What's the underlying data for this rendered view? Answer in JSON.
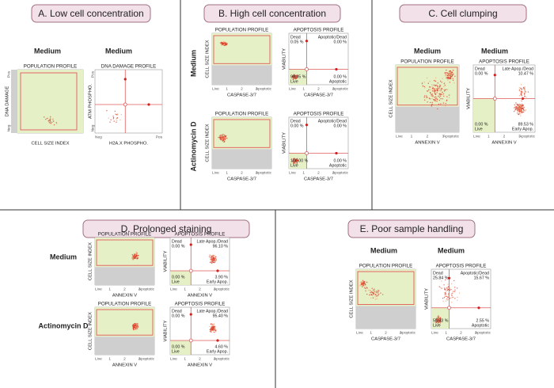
{
  "panels": [
    {
      "title": "A. Low cell concentration",
      "labels": [
        "Medium",
        "Medium"
      ],
      "plots": [
        {
          "title": "POPULATION PROFILE",
          "x_label": "CELL SIZE INDEX",
          "y_label": "DNA DAMAGE",
          "y_ends": [
            "Neg",
            "Pos"
          ]
        },
        {
          "title": "DNA DAMAGE PROFILE",
          "x_label": "H2A.X PHOSPHO.",
          "y_label": "ATM PHOSPHO.",
          "x_ends": [
            "Neg",
            "Pos"
          ],
          "y_ends": [
            "Neg",
            "Pos"
          ]
        }
      ]
    },
    {
      "title": "B. High cell concentration",
      "labels": [
        "Medium",
        "Actinomycin D"
      ],
      "plots": [
        {
          "title": "POPULATION PROFILE",
          "x_label": "CASPASE-3/7",
          "y_label": "CELL SIZE INDEX",
          "x_ends": [
            "Live",
            "Apoptotic"
          ],
          "x_ticks": [
            "1",
            "2",
            "3"
          ]
        },
        {
          "title": "APOPTOSIS PROFILE",
          "x_label": "CASPASE-3/7",
          "y_label": "VIABILITY",
          "x_ends": [
            "Live",
            "Apoptotic"
          ],
          "x_ticks": [
            "1",
            "2",
            "3"
          ],
          "quadrants": {
            "tl": [
              "Dead",
              "0.05 %"
            ],
            "tr": [
              "Apoptotic/Dead",
              "0.00 %"
            ],
            "bl": [
              "99.95 %",
              "Live"
            ],
            "br": [
              "0.00 %",
              "Apoptotic"
            ]
          }
        },
        {
          "title": "POPULATION PROFILE",
          "x_label": "CASPASE-3/7",
          "y_label": "CELL SIZE INDEX",
          "x_ends": [
            "Live",
            "Apoptotic"
          ],
          "x_ticks": [
            "1",
            "2",
            "3"
          ]
        },
        {
          "title": "APOPTOSIS PROFILE",
          "x_label": "CASPASE-3/7",
          "y_label": "VIABILITY",
          "x_ends": [
            "Live",
            "Apoptotic"
          ],
          "x_ticks": [
            "1",
            "2",
            "3"
          ],
          "quadrants": {
            "tl": [
              "Dead",
              "0.00 %"
            ],
            "tr": [
              "Apoptotic/Dead",
              "0.00 %"
            ],
            "bl": [
              "100.00 %",
              "Live"
            ],
            "br": [
              "0.00 %",
              "Apoptotic"
            ]
          }
        }
      ]
    },
    {
      "title": "C. Cell clumping",
      "labels": [
        "Medium",
        "Medium"
      ],
      "plots": [
        {
          "title": "POPULATION PROFILE",
          "x_label": "ANNEXIN V",
          "y_label": "CELL SIZE INDEX",
          "x_ends": [
            "Live",
            "Apoptotic"
          ],
          "x_ticks": [
            "1",
            "2",
            "3"
          ]
        },
        {
          "title": "APOPTOSIS PROFILE",
          "x_label": "ANNEXIN V",
          "y_label": "VIABILITY",
          "x_ends": [
            "Live",
            "Apoptotic"
          ],
          "x_ticks": [
            "1",
            "2",
            "3"
          ],
          "quadrants": {
            "tl": [
              "Dead",
              "0.00 %"
            ],
            "tr": [
              "Late Apop./Dead",
              "10.47 %"
            ],
            "bl": [
              "0.00 %",
              "Live"
            ],
            "br": [
              "89.53 %",
              "Early Apop."
            ]
          }
        }
      ]
    },
    {
      "title": "D. Prolonged staining",
      "labels": [
        "Medium",
        "Actinomycin D"
      ],
      "plots": [
        {
          "title": "POPULATION PROFILE",
          "x_label": "ANNEXIN V",
          "y_label": "CELL SIZE INDEX",
          "x_ends": [
            "Live",
            "Apoptotic"
          ],
          "x_ticks": [
            "1",
            "2",
            "3"
          ]
        },
        {
          "title": "APOPTOSIS PROFILE",
          "x_label": "ANNEXIN V",
          "y_label": "VIABILITY",
          "x_ends": [
            "Live",
            "Apoptotic"
          ],
          "x_ticks": [
            "1",
            "2",
            "3"
          ],
          "quadrants": {
            "tl": [
              "Dead",
              "0.00 %"
            ],
            "tr": [
              "Late Apop./Dead",
              "96.10 %"
            ],
            "bl": [
              "0.00 %",
              "Live"
            ],
            "br": [
              "3.90 %",
              "Early Apop."
            ]
          }
        },
        {
          "title": "POPULATION PROFILE",
          "x_label": "ANNEXIN V",
          "y_label": "CELL SIZE INDEX",
          "x_ends": [
            "Live",
            "Apoptotic"
          ],
          "x_ticks": [
            "1",
            "2",
            "3"
          ]
        },
        {
          "title": "APOPTOSIS PROFILE",
          "x_label": "ANNEXIN V",
          "y_label": "VIABILITY",
          "x_ends": [
            "Live",
            "Apoptotic"
          ],
          "x_ticks": [
            "1",
            "2",
            "3"
          ],
          "quadrants": {
            "tl": [
              "Dead",
              "0.00 %"
            ],
            "tr": [
              "Late Apop./Dead",
              "95.40 %"
            ],
            "bl": [
              "0.00 %",
              "Live"
            ],
            "br": [
              "4.60 %",
              "Early Apop."
            ]
          }
        }
      ]
    },
    {
      "title": "E. Poor sample handling",
      "labels": [
        "Medium",
        "Medium"
      ],
      "plots": [
        {
          "title": "POPULATION PROFILE",
          "x_label": "CASPASE-3/7",
          "y_label": "CELL SIZE INDEX",
          "x_ends": [
            "Live",
            "Apoptotic"
          ],
          "x_ticks": [
            "1",
            "2",
            "3"
          ]
        },
        {
          "title": "APOPTOSIS PROFILE",
          "x_label": "CASPASE-3/7",
          "y_label": "VIABILITY",
          "x_ends": [
            "Live",
            "Apoptotic"
          ],
          "x_ticks": [
            "1",
            "2",
            "3"
          ],
          "quadrants": {
            "tl": [
              "Dead",
              "25.84 %"
            ],
            "tr": [
              "Apoptotic/Dead",
              "15.67 %"
            ],
            "bl": [
              "55.93 %",
              "Live"
            ],
            "br": [
              "2.55 %",
              "Apoptotic"
            ]
          }
        }
      ]
    }
  ]
}
